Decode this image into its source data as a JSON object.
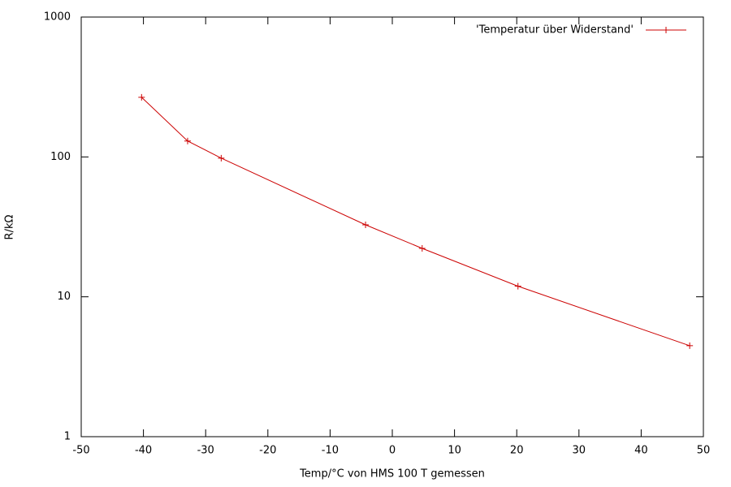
{
  "chart_data": {
    "type": "line",
    "xlabel": "Temp/°C von HMS 100 T gemessen",
    "ylabel": "R/kΩ",
    "x": [
      -40.3,
      -32.9,
      -27.5,
      -4.3,
      4.8,
      20.2,
      47.8
    ],
    "series": [
      {
        "name": "'Temperatur über Widerstand'",
        "color": "#cc0000",
        "values": [
          267,
          130,
          98,
          32.7,
          22.2,
          11.9,
          4.47
        ]
      }
    ],
    "xlim": [
      -50,
      50
    ],
    "xticks": [
      -50,
      -40,
      -30,
      -20,
      -10,
      0,
      10,
      20,
      30,
      40,
      50
    ],
    "ylim": [
      1,
      1000
    ],
    "yticks": [
      1,
      10,
      100,
      1000
    ],
    "ylog": true,
    "grid": false,
    "legend": "top right",
    "markers": "plus"
  }
}
